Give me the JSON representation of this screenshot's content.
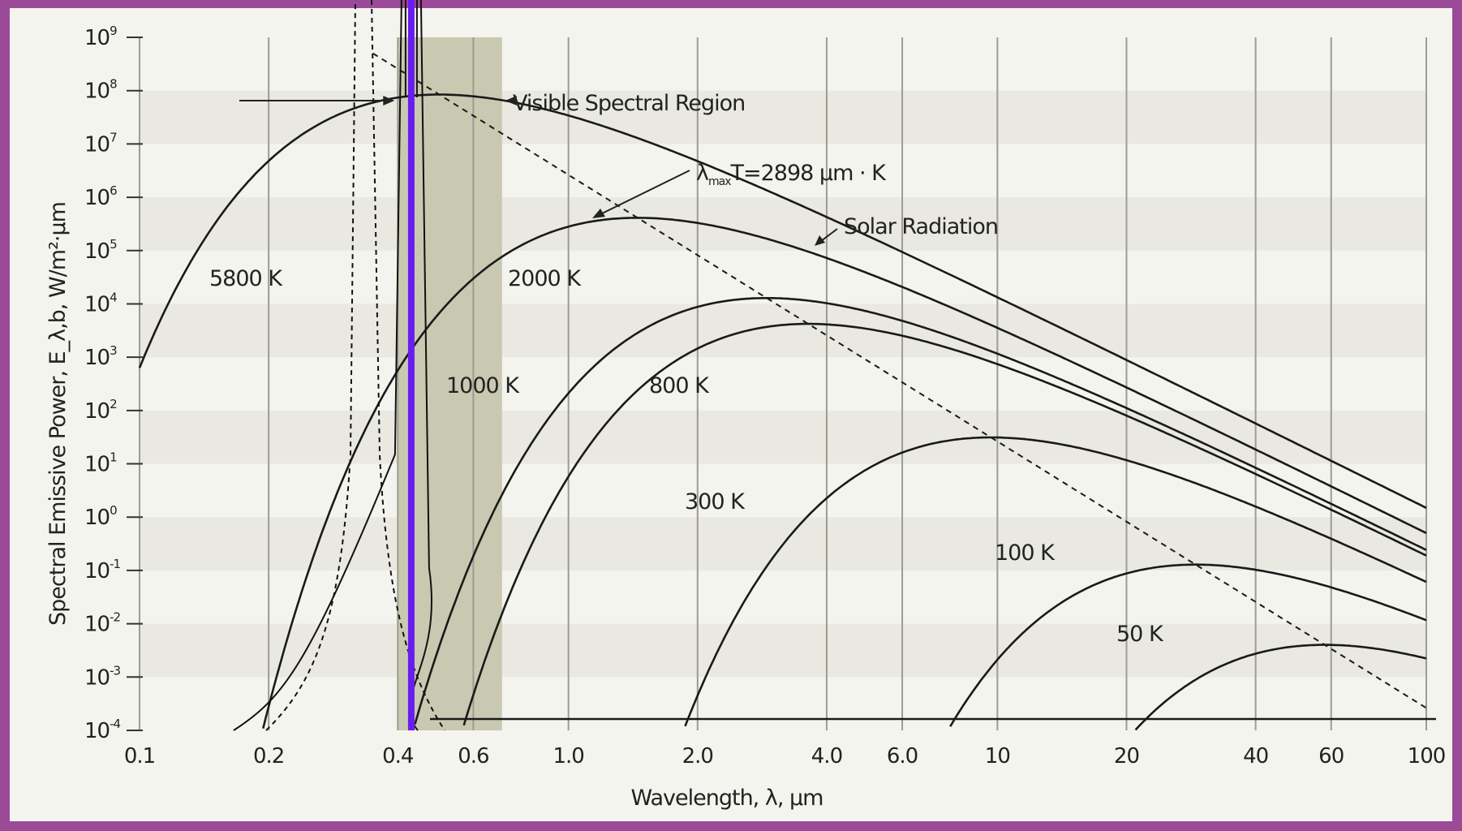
{
  "chart_data": {
    "type": "line",
    "title": "",
    "xlabel": "Wavelength, λ, μm",
    "ylabel": "Spectral Emissive Power, E_λ,b, W/m²·μm",
    "x_scale": "log",
    "y_scale": "log",
    "xlim": [
      0.1,
      100
    ],
    "ylim": [
      0.0001,
      1000000000
    ],
    "x_ticks": [
      "0.1",
      "0.2",
      "0.4",
      "0.6",
      "1.0",
      "2.0",
      "4.0",
      "6.0",
      "10",
      "20",
      "40",
      "60",
      "100"
    ],
    "x_tick_values": [
      0.1,
      0.2,
      0.4,
      0.6,
      1,
      2,
      4,
      6,
      10,
      20,
      40,
      60,
      100
    ],
    "y_ticks": [
      {
        "base": "10",
        "exp": "-4",
        "value": 0.0001
      },
      {
        "base": "10",
        "exp": "-3",
        "value": 0.001
      },
      {
        "base": "10",
        "exp": "-2",
        "value": 0.01
      },
      {
        "base": "10",
        "exp": "-1",
        "value": 0.1
      },
      {
        "base": "10",
        "exp": "0",
        "value": 1
      },
      {
        "base": "10",
        "exp": "1",
        "value": 10
      },
      {
        "base": "10",
        "exp": "2",
        "value": 100
      },
      {
        "base": "10",
        "exp": "3",
        "value": 1000
      },
      {
        "base": "10",
        "exp": "4",
        "value": 10000
      },
      {
        "base": "10",
        "exp": "5",
        "value": 100000
      },
      {
        "base": "10",
        "exp": "6",
        "value": 1000000
      },
      {
        "base": "10",
        "exp": "7",
        "value": 10000000
      },
      {
        "base": "10",
        "exp": "8",
        "value": 100000000
      },
      {
        "base": "10",
        "exp": "9",
        "value": 1000000000
      }
    ],
    "grid": "vertical lines, alternating horizontal bands",
    "series": [
      {
        "name": "5800 K",
        "temperature_K": 5800
      },
      {
        "name": "2000 K",
        "temperature_K": 2000
      },
      {
        "name": "1000 K",
        "temperature_K": 1000
      },
      {
        "name": "800 K",
        "temperature_K": 800
      },
      {
        "name": "300 K",
        "temperature_K": 300
      },
      {
        "name": "100 K",
        "temperature_K": 100
      },
      {
        "name": "50 K",
        "temperature_K": 50
      }
    ],
    "wien_line": {
      "label_prefix": "λ",
      "label_sub": "max",
      "label_suffix": "T=2898 μm · K",
      "constant_um_K": 2898
    },
    "visible_region": {
      "label": "Visible Spectral Region",
      "from_um": 0.4,
      "to_um": 0.7
    },
    "annotations": {
      "solar": "Solar Radiation"
    },
    "colors": {
      "frame": "#9b4a98",
      "plot_bg": "#f4f4ee",
      "band": "#e9e9e1",
      "visible_band": "#c9c8b1",
      "highlight_line": "#6a1cf0",
      "curve": "#1a1a1a"
    }
  }
}
